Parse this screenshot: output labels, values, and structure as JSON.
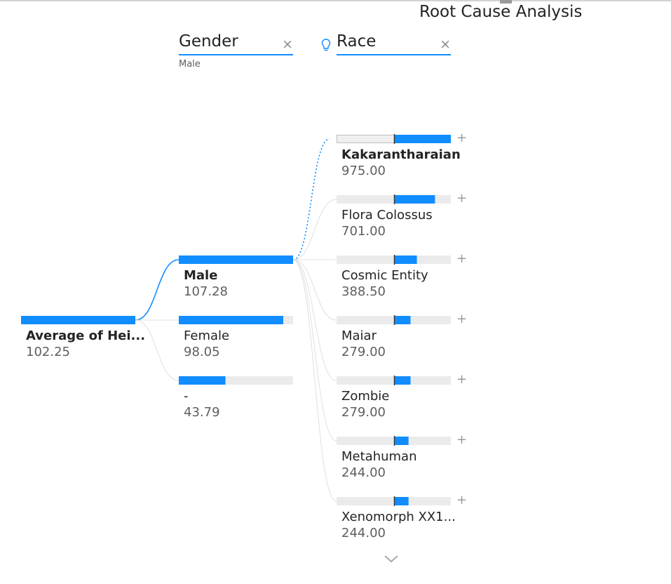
{
  "title": "Root Cause Analysis",
  "levels": [
    {
      "field": "Gender",
      "selected": "Male",
      "close": "×"
    },
    {
      "field": "Race",
      "selected": "",
      "close": "×",
      "ai_split_icon": "lightbulb-icon"
    }
  ],
  "expand_glyph": "+",
  "more_icon": "chevron-down-icon",
  "colors": {
    "bar": "#118dff",
    "track": "#ebebeb",
    "marker": "#3b3a39",
    "line": "#e0e0e0"
  },
  "chart_data": {
    "type": "decomposition_tree",
    "root": {
      "label": "Average of Hei...",
      "value": 102.25,
      "display": "102.25"
    },
    "gender": {
      "selected": "Male",
      "nodes": [
        {
          "label": "Male",
          "value": 107.28,
          "display": "107.28",
          "bold": true
        },
        {
          "label": "Female",
          "value": 98.05,
          "display": "98.05"
        },
        {
          "label": "-",
          "value": 43.79,
          "display": "43.79"
        }
      ]
    },
    "race": {
      "baseline": 107.28,
      "nodes": [
        {
          "label": "Kakarantharaian",
          "value": 975.0,
          "display": "975.00",
          "bold": true
        },
        {
          "label": "Flora Colossus",
          "value": 701.0,
          "display": "701.00"
        },
        {
          "label": "Cosmic Entity",
          "value": 388.5,
          "display": "388.50"
        },
        {
          "label": "Maiar",
          "value": 279.0,
          "display": "279.00"
        },
        {
          "label": "Zombie",
          "value": 279.0,
          "display": "279.00"
        },
        {
          "label": "Metahuman",
          "value": 244.0,
          "display": "244.00"
        },
        {
          "label": "Xenomorph XX1...",
          "value": 244.0,
          "display": "244.00"
        }
      ]
    }
  }
}
